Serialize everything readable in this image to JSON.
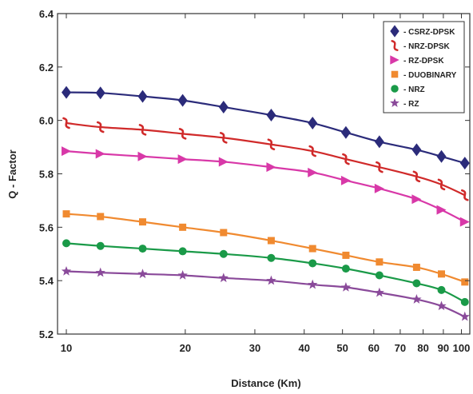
{
  "chart_data": {
    "type": "line",
    "title": "",
    "xlabel": "Distance (Km)",
    "ylabel": "Q - Factor",
    "x_scale": "log",
    "xlim": [
      9.5,
      105
    ],
    "ylim": [
      5.2,
      6.4
    ],
    "x_ticks": [
      10,
      20,
      30,
      40,
      50,
      60,
      70,
      80,
      90,
      100
    ],
    "y_ticks": [
      5.2,
      5.4,
      5.6,
      5.8,
      6.0,
      6.2,
      6.4
    ],
    "x_tick_labels": [
      "10",
      "20",
      "30",
      "40",
      "50",
      "60",
      "70",
      "80",
      "90",
      "100"
    ],
    "y_tick_labels": [
      "5.2",
      "5.4",
      "5.6",
      "5.8",
      "6.0",
      "6.2",
      "6.4"
    ],
    "legend_position": "top-right",
    "grid": false,
    "x": [
      10,
      12.2,
      15.6,
      19.7,
      25,
      33,
      42,
      51,
      62,
      77,
      89,
      102
    ],
    "series": [
      {
        "name": "- CSRZ-DPSK",
        "marker": "diamond",
        "color": "#2b2b7a",
        "values": [
          6.105,
          6.103,
          6.09,
          6.075,
          6.05,
          6.02,
          5.99,
          5.955,
          5.92,
          5.89,
          5.865,
          5.84
        ]
      },
      {
        "name": "- NRZ-DPSK",
        "marker": "s-curve",
        "color": "#d02a2a",
        "values": [
          5.99,
          5.975,
          5.965,
          5.95,
          5.935,
          5.91,
          5.885,
          5.855,
          5.825,
          5.79,
          5.76,
          5.72
        ]
      },
      {
        "name": "- RZ-DPSK",
        "marker": "triangle",
        "color": "#d838a8",
        "values": [
          5.885,
          5.875,
          5.865,
          5.855,
          5.845,
          5.825,
          5.805,
          5.775,
          5.745,
          5.705,
          5.665,
          5.62
        ]
      },
      {
        "name": "- DUOBINARY",
        "marker": "square",
        "color": "#f08a30",
        "values": [
          5.65,
          5.64,
          5.62,
          5.6,
          5.58,
          5.55,
          5.52,
          5.495,
          5.47,
          5.45,
          5.425,
          5.395
        ]
      },
      {
        "name": "- NRZ",
        "marker": "circle",
        "color": "#1a9a48",
        "values": [
          5.54,
          5.53,
          5.52,
          5.51,
          5.5,
          5.485,
          5.465,
          5.445,
          5.42,
          5.39,
          5.365,
          5.32
        ]
      },
      {
        "name": "- RZ",
        "marker": "star",
        "color": "#8a4a9a",
        "values": [
          5.435,
          5.43,
          5.425,
          5.42,
          5.41,
          5.4,
          5.385,
          5.375,
          5.355,
          5.33,
          5.305,
          5.265
        ]
      }
    ]
  }
}
